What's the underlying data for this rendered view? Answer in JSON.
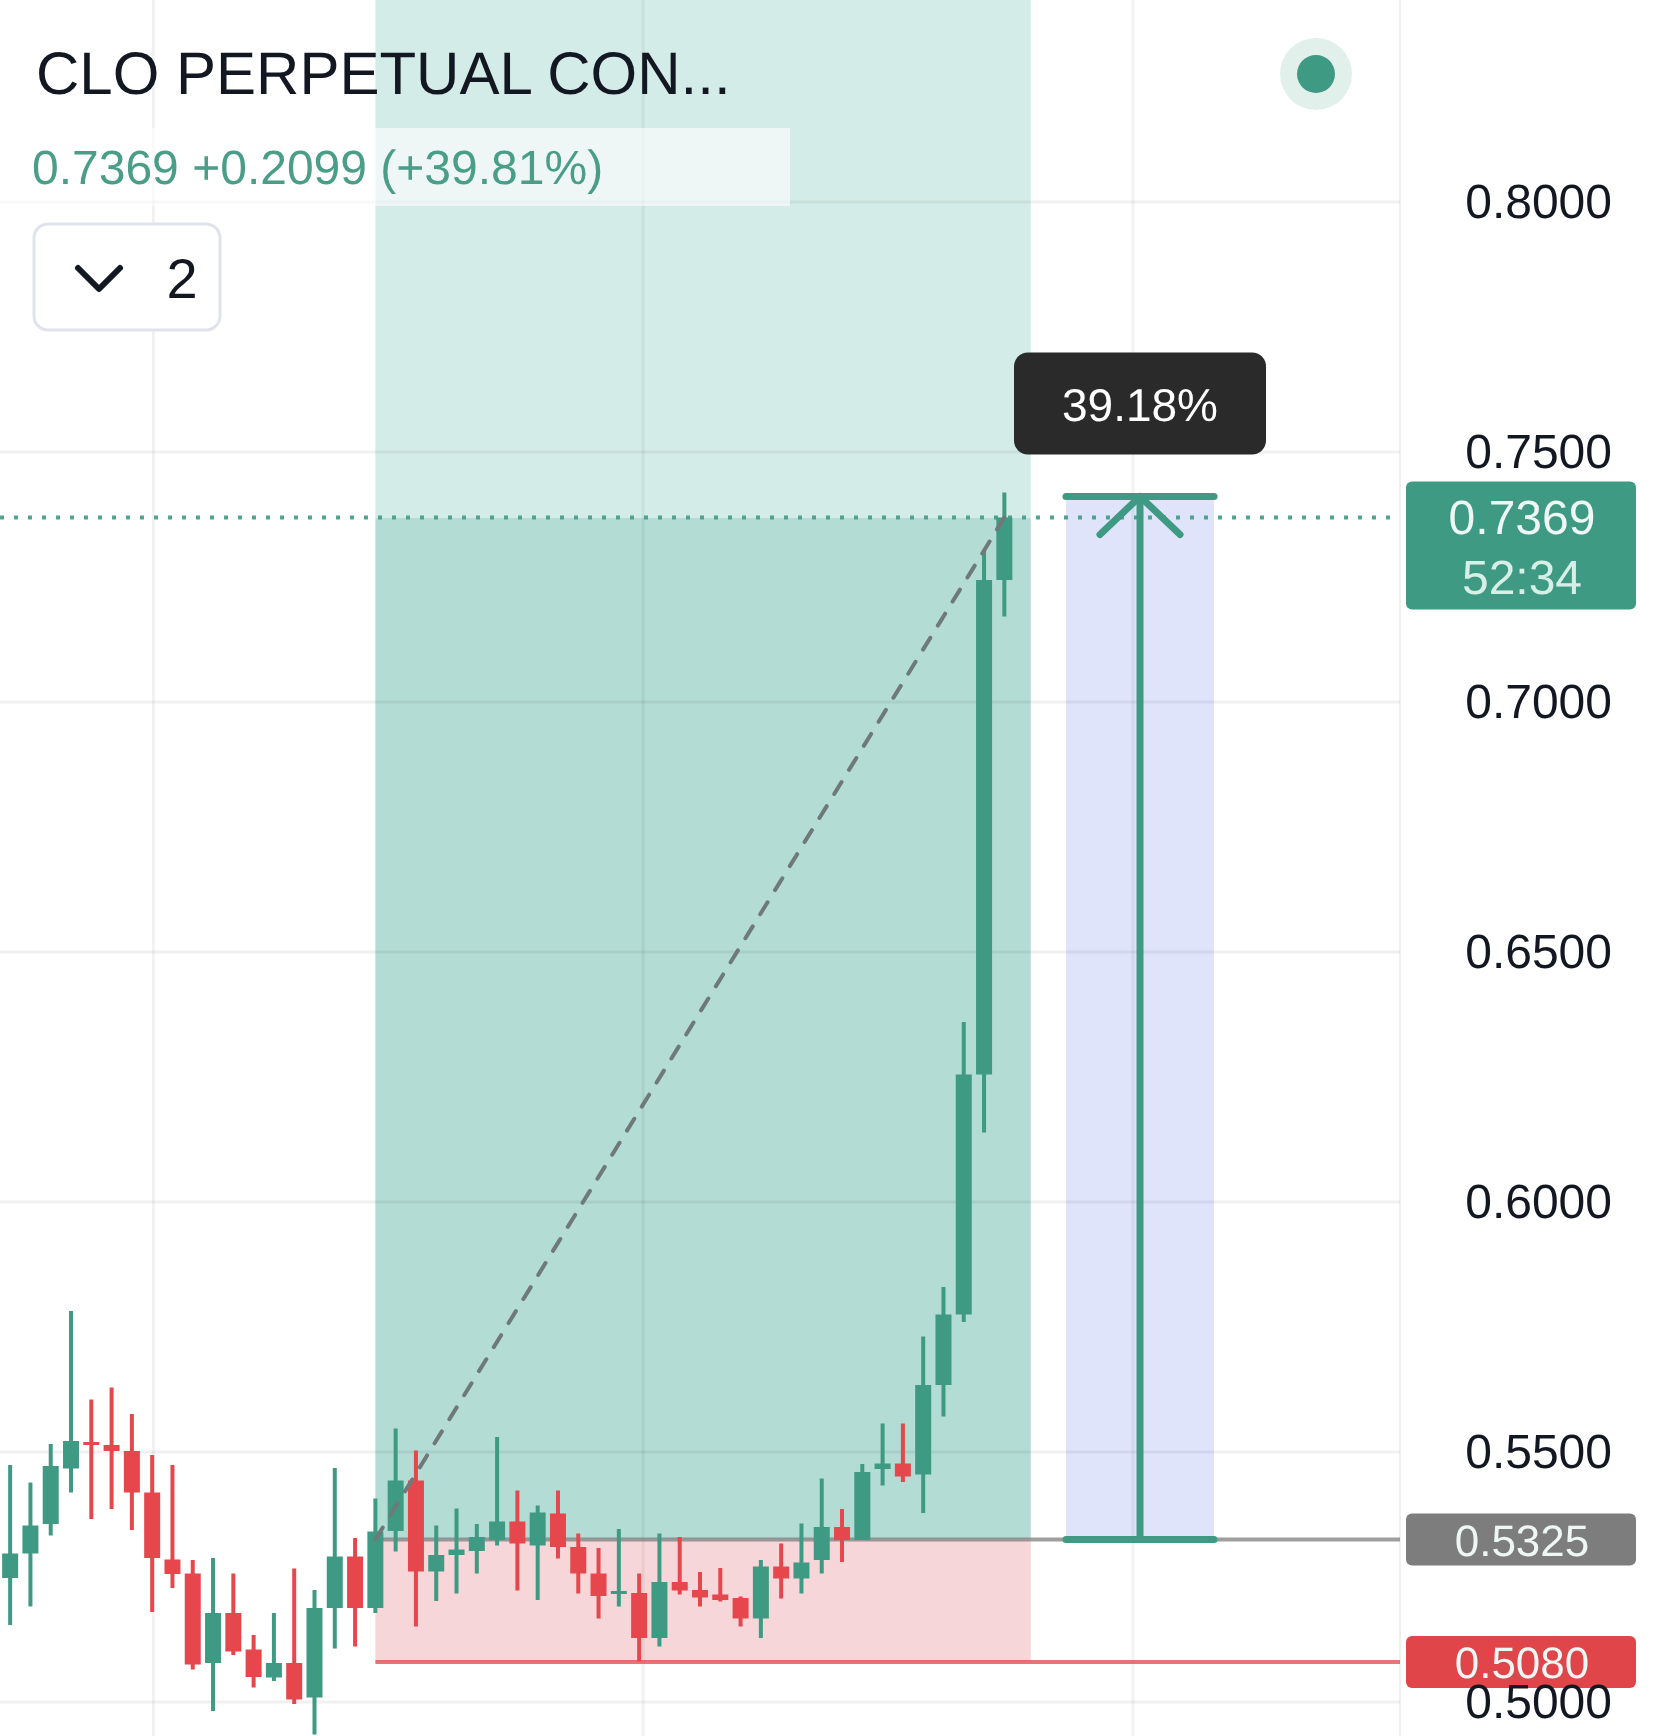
{
  "chart_data": {
    "type": "candlestick",
    "title": "CLO PERPETUAL CON...",
    "subtitle": "0.7369 +0.2099 (+39.81%)",
    "categories": [
      null,
      null,
      null,
      null,
      null,
      null,
      null,
      null,
      null,
      null,
      null,
      null,
      null,
      null,
      null,
      null,
      null,
      null,
      null,
      null,
      null,
      null,
      null,
      null,
      null,
      null,
      null,
      null,
      null,
      null,
      null,
      null,
      null,
      null,
      null,
      null,
      null,
      null,
      null,
      null,
      null,
      null,
      null,
      null,
      null,
      null,
      null,
      null,
      null,
      null,
      null,
      null,
      null,
      null,
      null,
      null,
      null,
      null,
      null,
      null,
      null,
      null,
      null,
      null,
      null,
      null,
      null,
      null,
      null
    ],
    "ohlc": [
      [
        0.5248,
        0.5474,
        0.5154,
        0.5297
      ],
      [
        0.5297,
        0.5439,
        0.5191,
        0.5353
      ],
      [
        0.5356,
        0.5516,
        0.5333,
        0.5472
      ],
      [
        0.5467,
        0.5782,
        0.5419,
        0.5522
      ],
      [
        0.552,
        0.5605,
        0.5366,
        0.5514
      ],
      [
        0.5514,
        0.5629,
        0.5386,
        0.5502
      ],
      [
        0.5502,
        0.5576,
        0.5344,
        0.5419
      ],
      [
        0.5419,
        0.5494,
        0.518,
        0.5288
      ],
      [
        0.5285,
        0.5474,
        0.5228,
        0.5256
      ],
      [
        0.5257,
        0.5284,
        0.5065,
        0.5075
      ],
      [
        0.5078,
        0.5288,
        0.4982,
        0.5178
      ],
      [
        0.5178,
        0.5257,
        0.5094,
        0.5101
      ],
      [
        0.5105,
        0.5134,
        0.5029,
        0.505
      ],
      [
        0.5049,
        0.5178,
        0.5042,
        0.5078
      ],
      [
        0.5078,
        0.5267,
        0.4996,
        0.5005
      ],
      [
        0.5009,
        0.5224,
        0.4935,
        0.5188
      ],
      [
        0.5188,
        0.5468,
        0.5107,
        0.5291
      ],
      [
        0.5291,
        0.5328,
        0.5111,
        0.5188
      ],
      [
        0.5188,
        0.5407,
        0.5178,
        0.5341
      ],
      [
        0.5342,
        0.5547,
        0.5301,
        0.5443
      ],
      [
        0.5443,
        0.5503,
        0.5151,
        0.5261
      ],
      [
        0.5261,
        0.5353,
        0.5202,
        0.5294
      ],
      [
        0.5294,
        0.5387,
        0.5217,
        0.5305
      ],
      [
        0.5302,
        0.5356,
        0.5257,
        0.533
      ],
      [
        0.5324,
        0.553,
        0.5313,
        0.5361
      ],
      [
        0.5361,
        0.5423,
        0.5223,
        0.5317
      ],
      [
        0.5313,
        0.5393,
        0.5204,
        0.5379
      ],
      [
        0.5377,
        0.5423,
        0.5287,
        0.531
      ],
      [
        0.531,
        0.5337,
        0.5217,
        0.5257
      ],
      [
        0.5257,
        0.5308,
        0.5167,
        0.5212
      ],
      [
        0.5218,
        0.5346,
        0.5191,
        0.5222
      ],
      [
        0.5218,
        0.5257,
        0.5081,
        0.5128
      ],
      [
        0.5128,
        0.5337,
        0.5111,
        0.524
      ],
      [
        0.524,
        0.533,
        0.5215,
        0.5223
      ],
      [
        0.5224,
        0.526,
        0.5191,
        0.5209
      ],
      [
        0.5215,
        0.5268,
        0.5201,
        0.5204
      ],
      [
        0.5208,
        0.5211,
        0.5151,
        0.5167
      ],
      [
        0.5167,
        0.5284,
        0.5128,
        0.5271
      ],
      [
        0.5271,
        0.5317,
        0.5207,
        0.5247
      ],
      [
        0.5247,
        0.5357,
        0.5217,
        0.5279
      ],
      [
        0.5284,
        0.5447,
        0.5257,
        0.535
      ],
      [
        0.535,
        0.5386,
        0.528,
        0.5324
      ],
      [
        0.5324,
        0.5476,
        0.5324,
        0.546
      ],
      [
        0.5466,
        0.5557,
        0.5433,
        0.5477
      ],
      [
        0.5477,
        0.5557,
        0.544,
        0.5451
      ],
      [
        0.5455,
        0.5731,
        0.5378,
        0.5634
      ],
      [
        0.5634,
        0.583,
        0.5571,
        0.5775
      ],
      [
        0.5775,
        0.636,
        0.576,
        0.6255
      ],
      [
        0.6255,
        0.7302,
        0.6139,
        0.7244
      ],
      [
        0.7244,
        0.7419,
        0.7171,
        0.7369
      ],
      null,
      null,
      null,
      null,
      null,
      null,
      null,
      null,
      null,
      null,
      null,
      null,
      null,
      null,
      null,
      null,
      null,
      null,
      null
    ],
    "colors": [
      "#3f9a83",
      "#3f9a83",
      "#3f9a83",
      "#3f9a83",
      "#e5474c",
      "#e5474c",
      "#e5474c",
      "#e5474c",
      "#e5474c",
      "#e5474c",
      "#3f9a83",
      "#e5474c",
      "#e5474c",
      "#3f9a83",
      "#e5474c",
      "#3f9a83",
      "#3f9a83",
      "#e5474c",
      "#3f9a83",
      "#3f9a83",
      "#e5474c",
      "#3f9a83",
      "#3f9a83",
      "#3f9a83",
      "#3f9a83",
      "#e5474c",
      "#3f9a83",
      "#e5474c",
      "#e5474c",
      "#e5474c",
      "#3f9a83",
      "#e5474c",
      "#3f9a83",
      "#e5474c",
      "#e5474c",
      "#e5474c",
      "#e5474c",
      "#3f9a83",
      "#e5474c",
      "#3f9a83",
      "#3f9a83",
      "#e5474c",
      "#3f9a83",
      "#3f9a83",
      "#e5474c",
      "#3f9a83",
      "#3f9a83",
      "#3f9a83",
      "#3f9a83",
      "#3f9a83",
      null,
      null,
      null,
      null,
      null,
      null,
      null,
      null,
      null,
      null,
      null,
      null,
      null,
      null,
      null,
      null,
      null,
      null,
      null
    ],
    "series": [
      {
        "type": "line",
        "color": "#6f7a78",
        "values": [
          null,
          null,
          null,
          null,
          null,
          null,
          null,
          null,
          null,
          null,
          null,
          null,
          null,
          null,
          null,
          null,
          null,
          null,
          0.5325,
          null,
          null,
          null,
          null,
          null,
          null,
          null,
          null,
          null,
          null,
          null,
          null,
          null,
          null,
          null,
          null,
          null,
          null,
          null,
          null,
          null,
          null,
          null,
          null,
          null,
          null,
          null,
          null,
          null,
          null,
          0.7369,
          null,
          null,
          null,
          null,
          null,
          null,
          null,
          null,
          null,
          null,
          null,
          null,
          null,
          null,
          null,
          null,
          null,
          null,
          null
        ]
      }
    ],
    "line_style": "dashed",
    "ylim": [
      0.4932,
      0.8404
    ],
    "yticks": [
      {
        "value": 0.5,
        "label": "0.5000"
      },
      {
        "value": 0.55,
        "label": "0.5500"
      },
      {
        "value": 0.6,
        "label": "0.6000"
      },
      {
        "value": 0.65,
        "label": "0.6500"
      },
      {
        "value": 0.7,
        "label": "0.7000"
      },
      {
        "value": 0.75,
        "label": "0.7500"
      },
      {
        "value": 0.8,
        "label": "0.8000"
      }
    ],
    "grid": true,
    "ref_lines": [
      {
        "axis": "y",
        "value": 0.7369,
        "label": "0.7369",
        "color": "#3f9a83",
        "line_style": "dotted"
      },
      {
        "axis": "y",
        "value": 0.5325,
        "label": "0.5325",
        "color": "#7d7d7d"
      },
      {
        "axis": "y",
        "value": 0.508,
        "label": "0.5080",
        "color": "#e0454a"
      }
    ],
    "bands": [
      {
        "axis": "y",
        "from": 0.5325,
        "to": 0.7369,
        "color": "#b2dcd4"
      },
      {
        "axis": "y",
        "from": 0.7369,
        "to": 0.8404,
        "color": "#d4ece7"
      },
      {
        "axis": "y",
        "from": 0.508,
        "to": 0.5325,
        "color": "#f7d6d9"
      },
      {
        "axis": "y",
        "from": 0.5325,
        "to": 0.7411,
        "color": "#dfe4fa"
      }
    ],
    "annotations": [
      "39.18%",
      "52:34",
      "2"
    ]
  }
}
